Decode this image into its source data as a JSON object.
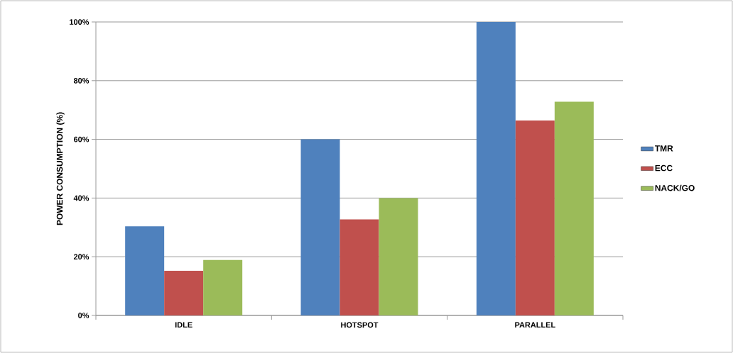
{
  "chart_data": {
    "type": "bar",
    "ylabel": "POWER CONSUMPTION (%)",
    "categories": [
      "IDLE",
      "HOTSPOT",
      "PARALLEL"
    ],
    "series": [
      {
        "name": "TMR",
        "color": "#4f81bd",
        "values": [
          30.4,
          60,
          100
        ]
      },
      {
        "name": "ECC",
        "color": "#c0504d",
        "values": [
          15.2,
          32.7,
          66.4
        ]
      },
      {
        "name": "NACK/GO",
        "color": "#9bbb59",
        "values": [
          18.9,
          40,
          72.8
        ]
      }
    ],
    "ylim": [
      0,
      100
    ],
    "yticks": [
      {
        "value": 0,
        "label": "0%"
      },
      {
        "value": 20,
        "label": "20%"
      },
      {
        "value": 40,
        "label": "40%"
      },
      {
        "value": 60,
        "label": "60%"
      },
      {
        "value": 80,
        "label": "80%"
      },
      {
        "value": 100,
        "label": "100%"
      }
    ],
    "grid": "y",
    "legend": "right"
  }
}
